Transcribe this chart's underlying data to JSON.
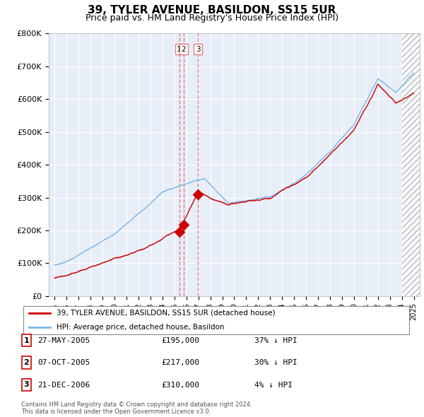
{
  "title": "39, TYLER AVENUE, BASILDON, SS15 5UR",
  "subtitle": "Price paid vs. HM Land Registry's House Price Index (HPI)",
  "legend_entry1": "39, TYLER AVENUE, BASILDON, SS15 5UR (detached house)",
  "legend_entry2": "HPI: Average price, detached house, Basildon",
  "transactions": [
    {
      "id": 1,
      "date": "27-MAY-2005",
      "price": "£195,000",
      "hpi": "37% ↓ HPI",
      "year": 2005.4
    },
    {
      "id": 2,
      "date": "07-OCT-2005",
      "price": "£217,000",
      "hpi": "30% ↓ HPI",
      "year": 2005.77
    },
    {
      "id": 3,
      "date": "21-DEC-2006",
      "price": "£310,000",
      "hpi": "4% ↓ HPI",
      "year": 2006.97
    }
  ],
  "transaction_values": [
    195000,
    217000,
    310000
  ],
  "footnote": "Contains HM Land Registry data © Crown copyright and database right 2024.\nThis data is licensed under the Open Government Licence v3.0.",
  "ylim": [
    0,
    800000
  ],
  "yticks": [
    0,
    100000,
    200000,
    300000,
    400000,
    500000,
    600000,
    700000,
    800000
  ],
  "ytick_labels": [
    "£0",
    "£100K",
    "£200K",
    "£300K",
    "£400K",
    "£500K",
    "£600K",
    "£700K",
    "£800K"
  ],
  "hpi_color": "#7ab8e8",
  "price_color": "#cc0000",
  "vline_color": "#e08080",
  "plot_bg_color": "#e8eef8",
  "bg_color": "#ffffff",
  "grid_color": "#ffffff",
  "title_fontsize": 11,
  "subtitle_fontsize": 9,
  "axis_fontsize": 8,
  "xlim_start": 1995,
  "xlim_end": 2025,
  "hatch_start": 2024.0
}
